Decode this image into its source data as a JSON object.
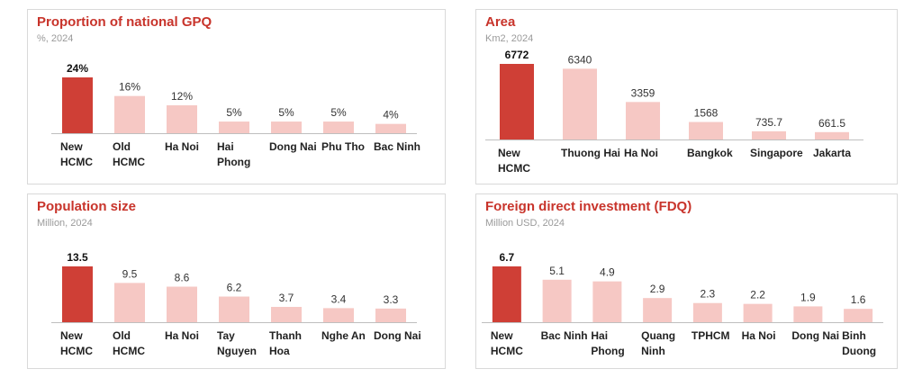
{
  "colors": {
    "highlight": "#cf3f36",
    "bar": "#f6c8c4",
    "title": "#c8342b",
    "axis": "#bfbfbf"
  },
  "panels": [
    {
      "title": "Proportion of national GPQ",
      "subtitle": "%, 2024"
    },
    {
      "title": "Area",
      "subtitle": "Km2, 2024"
    },
    {
      "title": "Population size",
      "subtitle": "Million, 2024"
    },
    {
      "title": "Foreign direct investment (FDQ)",
      "subtitle": "Million USD, 2024"
    }
  ],
  "chart_data": [
    {
      "type": "bar",
      "title": "Proportion of national GPQ",
      "subtitle": "%, 2024",
      "categories": [
        [
          "New",
          "HCMC"
        ],
        [
          "Old",
          "HCMC"
        ],
        [
          "Ha Noi"
        ],
        [
          "Hai",
          "Phong"
        ],
        [
          "Dong Nai"
        ],
        [
          "Phu Tho"
        ],
        [
          "Bac Ninh"
        ]
      ],
      "values": [
        24,
        16,
        12,
        5,
        5,
        5,
        4
      ],
      "value_labels": [
        "24%",
        "16%",
        "12%",
        "5%",
        "5%",
        "5%",
        "4%"
      ],
      "highlight_index": 0
    },
    {
      "type": "bar",
      "title": "Area",
      "subtitle": "Km2, 2024",
      "categories": [
        [
          "New",
          "HCMC"
        ],
        [
          "Thuong Hai"
        ],
        [
          "Ha Noi"
        ],
        [
          "Bangkok"
        ],
        [
          "Singapore"
        ],
        [
          "Jakarta"
        ]
      ],
      "values": [
        6772,
        6340,
        3359,
        1568,
        735.7,
        661.5
      ],
      "value_labels": [
        "6772",
        "6340",
        "3359",
        "1568",
        "735.7",
        "661.5"
      ],
      "highlight_index": 0
    },
    {
      "type": "bar",
      "title": "Population size",
      "subtitle": "Million, 2024",
      "categories": [
        [
          "New",
          "HCMC"
        ],
        [
          "Old",
          "HCMC"
        ],
        [
          "Ha Noi"
        ],
        [
          "Tay",
          "Nguyen"
        ],
        [
          "Thanh",
          "Hoa"
        ],
        [
          "Nghe An"
        ],
        [
          "Dong Nai"
        ]
      ],
      "values": [
        13.5,
        9.5,
        8.6,
        6.2,
        3.7,
        3.4,
        3.3
      ],
      "value_labels": [
        "13.5",
        "9.5",
        "8.6",
        "6.2",
        "3.7",
        "3.4",
        "3.3"
      ],
      "highlight_index": 0
    },
    {
      "type": "bar",
      "title": "Foreign direct investment (FDQ)",
      "subtitle": "Million USD, 2024",
      "categories": [
        [
          "New",
          "HCMC"
        ],
        [
          "Bac Ninh"
        ],
        [
          "Hai",
          "Phong"
        ],
        [
          "Quang",
          "Ninh"
        ],
        [
          "TPHCM"
        ],
        [
          "Ha Noi"
        ],
        [
          "Dong Nai"
        ],
        [
          "Binh",
          "Duong"
        ]
      ],
      "values": [
        6.7,
        5.1,
        4.9,
        2.9,
        2.3,
        2.2,
        1.9,
        1.6
      ],
      "value_labels": [
        "6.7",
        "5.1",
        "4.9",
        "2.9",
        "2.3",
        "2.2",
        "1.9",
        "1.6"
      ],
      "highlight_index": 0
    }
  ]
}
